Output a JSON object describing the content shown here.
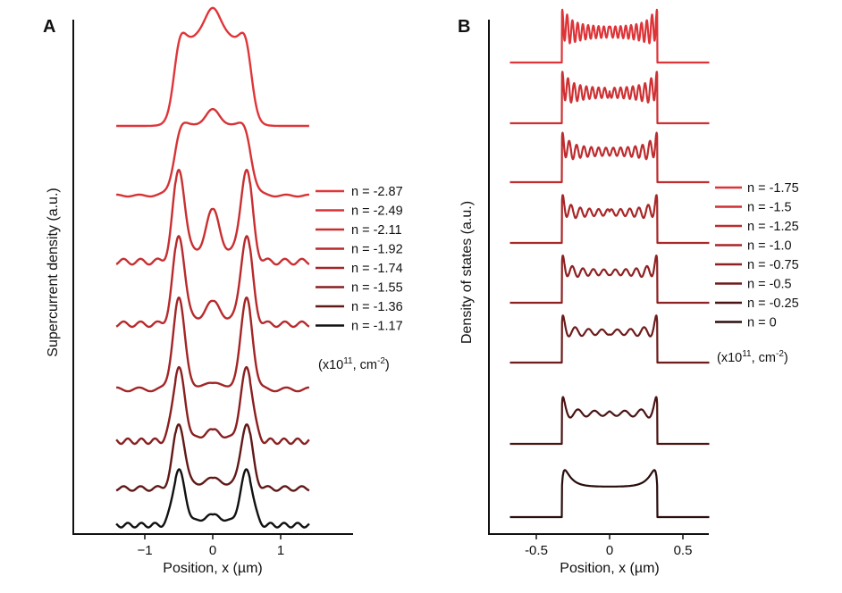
{
  "chart_data": [
    {
      "panel": "A",
      "type": "line",
      "layout": "stacked-offset",
      "xlabel": "Position, x (µm)",
      "ylabel": "Supercurrent density (a.u.)",
      "x_ticks": [
        -1,
        0,
        1
      ],
      "x_tick_labels": [
        "−1",
        "0",
        "1"
      ],
      "xlim": [
        -1.95,
        2.0
      ],
      "grid": false,
      "legend_placement": "right",
      "legend_unit_text": "(x10",
      "legend_unit_sup1": "11",
      "legend_unit_mid": ", cm",
      "legend_unit_sup2": "-2",
      "legend_unit_end": ")",
      "series": [
        {
          "name": "n = -2.87",
          "color": "#e0353a"
        },
        {
          "name": "n = -2.49",
          "color": "#d63336"
        },
        {
          "name": "n = -2.11",
          "color": "#c92f31"
        },
        {
          "name": "n = -1.92",
          "color": "#b82a2c"
        },
        {
          "name": "n = -1.74",
          "color": "#a32526"
        },
        {
          "name": "n = -1.55",
          "color": "#8a1f20"
        },
        {
          "name": "n = -1.36",
          "color": "#611918"
        },
        {
          "name": "n = -1.17",
          "color": "#111111"
        }
      ]
    },
    {
      "panel": "B",
      "type": "line",
      "layout": "stacked-offset",
      "xlabel": "Position, x (µm)",
      "ylabel": "Density of states (a.u.)",
      "x_ticks": [
        -0.5,
        0,
        0.5
      ],
      "x_tick_labels": [
        "-0.5",
        "0",
        "0.5"
      ],
      "xlim": [
        -0.84,
        0.8
      ],
      "grid": false,
      "legend_placement": "right",
      "legend_unit_text": "(x10",
      "legend_unit_sup1": "11",
      "legend_unit_mid": ", cm",
      "legend_unit_sup2": "-2",
      "legend_unit_end": ")",
      "series": [
        {
          "name": "n = -1.75",
          "color": "#dd3438"
        },
        {
          "name": "n = -1.5",
          "color": "#ce3134"
        },
        {
          "name": "n = -1.25",
          "color": "#bd2c2f"
        },
        {
          "name": "n = -1.0",
          "color": "#a82728"
        },
        {
          "name": "n = -0.75",
          "color": "#8e2122"
        },
        {
          "name": "n = -0.5",
          "color": "#6e1b1b"
        },
        {
          "name": "n = -0.25",
          "color": "#4a1413"
        },
        {
          "name": "n = 0",
          "color": "#2a0e0d"
        }
      ]
    }
  ],
  "labels": {
    "panel_a": "A",
    "panel_b": "B"
  }
}
